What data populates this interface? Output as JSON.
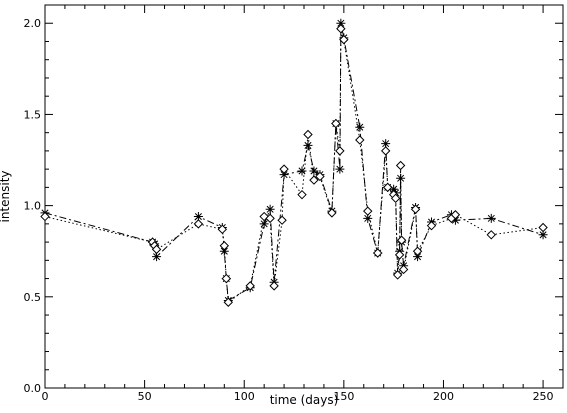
{
  "chart_data": {
    "type": "line",
    "title": "",
    "xlabel": "time (days)",
    "ylabel": "intensity",
    "xlim": [
      0,
      260
    ],
    "ylim": [
      0.0,
      2.1
    ],
    "x_ticks": [
      0,
      50,
      100,
      150,
      200,
      250
    ],
    "x_tick_labels": [
      "0",
      "50",
      "100",
      "150",
      "200",
      "250"
    ],
    "y_ticks": [
      0.0,
      0.5,
      1.0,
      1.5,
      2.0
    ],
    "y_tick_labels": [
      "0.0",
      "0.5",
      "1.0",
      "1.5",
      "2.0"
    ],
    "grid": false,
    "legend": "none",
    "series": [
      {
        "marker": "asterisk",
        "line_style": "dash-dot",
        "color": "#000000",
        "points": [
          [
            0,
            0.96
          ],
          [
            54,
            0.8
          ],
          [
            55,
            0.79
          ],
          [
            56,
            0.72
          ],
          [
            77,
            0.94
          ],
          [
            89,
            0.88
          ],
          [
            90,
            0.75
          ],
          [
            91,
            0.6
          ],
          [
            92,
            0.48
          ],
          [
            103,
            0.55
          ],
          [
            110,
            0.9
          ],
          [
            113,
            0.98
          ],
          [
            115,
            0.58
          ],
          [
            120,
            1.17
          ],
          [
            129,
            1.19
          ],
          [
            132,
            1.33
          ],
          [
            135,
            1.19
          ],
          [
            138,
            1.17
          ],
          [
            144,
            0.97
          ],
          [
            146,
            1.45
          ],
          [
            148,
            1.2
          ],
          [
            148.5,
            2.0
          ],
          [
            150,
            1.92
          ],
          [
            158,
            1.43
          ],
          [
            162,
            0.93
          ],
          [
            167,
            0.74
          ],
          [
            171,
            1.34
          ],
          [
            172,
            1.1
          ],
          [
            175,
            1.09
          ],
          [
            176,
            1.07
          ],
          [
            177,
            0.63
          ],
          [
            178,
            0.75
          ],
          [
            178.5,
            1.15
          ],
          [
            179,
            0.8
          ],
          [
            180,
            0.67
          ],
          [
            186,
            0.99
          ],
          [
            187,
            0.72
          ],
          [
            194,
            0.91
          ],
          [
            204,
            0.95
          ],
          [
            206,
            0.92
          ],
          [
            224,
            0.93
          ],
          [
            250,
            0.84
          ]
        ]
      },
      {
        "marker": "diamond",
        "line_style": "dotted",
        "color": "#000000",
        "points": [
          [
            0,
            0.94
          ],
          [
            54,
            0.8
          ],
          [
            55,
            0.78
          ],
          [
            56,
            0.76
          ],
          [
            77,
            0.9
          ],
          [
            89,
            0.87
          ],
          [
            90,
            0.78
          ],
          [
            91,
            0.6
          ],
          [
            92,
            0.47
          ],
          [
            103,
            0.56
          ],
          [
            110,
            0.94
          ],
          [
            113,
            0.93
          ],
          [
            115,
            0.56
          ],
          [
            119,
            0.92
          ],
          [
            120,
            1.2
          ],
          [
            129,
            1.06
          ],
          [
            132,
            1.39
          ],
          [
            135,
            1.14
          ],
          [
            138,
            1.16
          ],
          [
            144,
            0.96
          ],
          [
            146,
            1.45
          ],
          [
            148,
            1.3
          ],
          [
            148.5,
            1.97
          ],
          [
            150,
            1.91
          ],
          [
            158,
            1.36
          ],
          [
            162,
            0.97
          ],
          [
            167,
            0.74
          ],
          [
            171,
            1.3
          ],
          [
            172,
            1.1
          ],
          [
            175,
            1.06
          ],
          [
            176,
            1.04
          ],
          [
            177,
            0.62
          ],
          [
            178,
            0.73
          ],
          [
            178.5,
            1.22
          ],
          [
            179,
            0.81
          ],
          [
            180,
            0.65
          ],
          [
            186,
            0.98
          ],
          [
            187,
            0.75
          ],
          [
            194,
            0.89
          ],
          [
            204,
            0.93
          ],
          [
            206,
            0.95
          ],
          [
            224,
            0.84
          ],
          [
            250,
            0.88
          ]
        ]
      }
    ]
  }
}
